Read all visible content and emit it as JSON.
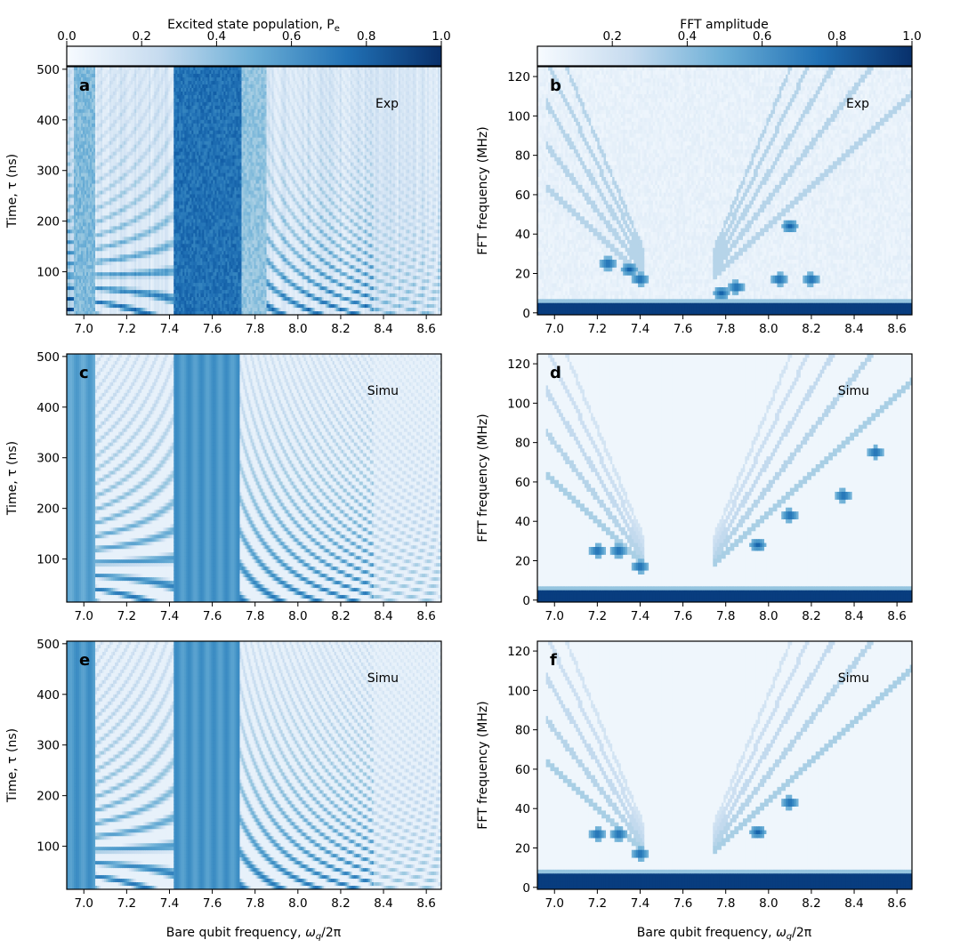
{
  "colorbars": {
    "left": {
      "label": "Excited state population, P",
      "label_sub": "e",
      "ticks": [
        "0.0",
        "0.2",
        "0.4",
        "0.6",
        "0.8",
        "1.0"
      ],
      "range": [
        0,
        1
      ]
    },
    "right": {
      "label": "FFT amplitude",
      "ticks": [
        "0.2",
        "0.4",
        "0.6",
        "0.8",
        "1.0"
      ],
      "tick_values": [
        0.2,
        0.4,
        0.6,
        0.8,
        1.0
      ],
      "range": [
        0,
        1
      ]
    }
  },
  "colors": {
    "low": "#f7fbff",
    "mid": "#6baed6",
    "high": "#08306b",
    "mid_dark": "#2171b5"
  },
  "axes": {
    "x_label_prefix": "Bare qubit frequency, ",
    "x_label_symbol": "ω",
    "x_label_sub": "q",
    "x_label_suffix": "/2π",
    "time_label": "Time, τ (ns)",
    "fft_label": "FFT frequency (MHz)",
    "x_ticks": [
      "7.0",
      "7.2",
      "7.4",
      "7.6",
      "7.8",
      "8.0",
      "8.2",
      "8.4",
      "8.6"
    ],
    "time_ticks": [
      "100",
      "200",
      "300",
      "400",
      "500"
    ],
    "fft_ticks": [
      "0",
      "20",
      "40",
      "60",
      "80",
      "100",
      "120"
    ]
  },
  "chart_data": [
    {
      "type": "heatmap",
      "panel": "a",
      "tag": "Exp",
      "quantity": "Excited state population P_e",
      "xlabel": "",
      "ylabel": "Time, τ (ns)",
      "xlim": [
        6.92,
        8.67
      ],
      "ylim": [
        15,
        505
      ],
      "bands": [
        {
          "x_range": [
            6.95,
            7.05
          ],
          "level": 0.45
        },
        {
          "x_range": [
            7.42,
            7.74
          ],
          "level": 0.75
        },
        {
          "x_range": [
            7.74,
            7.85
          ],
          "level": 0.4
        }
      ],
      "chevron_centers": [
        7.2,
        7.35,
        7.8,
        7.9
      ]
    },
    {
      "type": "heatmap",
      "panel": "b",
      "tag": "Exp",
      "quantity": "FFT amplitude",
      "xlabel": "",
      "ylabel": "FFT frequency (MHz)",
      "xlim": [
        6.92,
        8.67
      ],
      "ylim": [
        -1,
        125
      ],
      "baseline_MHz": [
        0,
        5
      ],
      "features": [
        {
          "x": 7.4,
          "y_MHz": 17
        },
        {
          "x": 7.35,
          "y_MHz": 22
        },
        {
          "x": 7.25,
          "y_MHz": 25
        },
        {
          "x": 7.78,
          "y_MHz": 10
        },
        {
          "x": 7.85,
          "y_MHz": 13
        },
        {
          "x": 8.1,
          "y_MHz": 44
        },
        {
          "x": 8.05,
          "y_MHz": 17
        },
        {
          "x": 8.2,
          "y_MHz": 17
        }
      ]
    },
    {
      "type": "heatmap",
      "panel": "c",
      "tag": "Simu",
      "quantity": "Excited state population P_e",
      "xlabel": "",
      "ylabel": "Time, τ (ns)",
      "xlim": [
        6.92,
        8.67
      ],
      "ylim": [
        15,
        505
      ],
      "bands": [
        {
          "x_range": [
            6.92,
            7.05
          ],
          "level": 0.55
        },
        {
          "x_range": [
            7.42,
            7.73
          ],
          "level": 0.6
        }
      ]
    },
    {
      "type": "heatmap",
      "panel": "d",
      "tag": "Simu",
      "quantity": "FFT amplitude",
      "xlabel": "",
      "ylabel": "FFT frequency (MHz)",
      "xlim": [
        6.92,
        8.67
      ],
      "ylim": [
        -1,
        125
      ],
      "baseline_MHz": [
        0,
        5
      ],
      "features": [
        {
          "x": 7.4,
          "y_MHz": 17
        },
        {
          "x": 7.3,
          "y_MHz": 25
        },
        {
          "x": 7.2,
          "y_MHz": 25
        },
        {
          "x": 7.95,
          "y_MHz": 28
        },
        {
          "x": 8.1,
          "y_MHz": 43
        },
        {
          "x": 8.35,
          "y_MHz": 53
        },
        {
          "x": 8.5,
          "y_MHz": 75
        }
      ]
    },
    {
      "type": "heatmap",
      "panel": "e",
      "tag": "Simu",
      "quantity": "Excited state population P_e",
      "xlabel": "Bare qubit frequency, ω_q/2π",
      "ylabel": "Time, τ (ns)",
      "xlim": [
        6.92,
        8.67
      ],
      "ylim": [
        15,
        505
      ],
      "bands": [
        {
          "x_range": [
            6.92,
            7.05
          ],
          "level": 0.6
        },
        {
          "x_range": [
            7.42,
            7.73
          ],
          "level": 0.6
        }
      ]
    },
    {
      "type": "heatmap",
      "panel": "f",
      "tag": "Simu",
      "quantity": "FFT amplitude",
      "xlabel": "Bare qubit frequency, ω_q/2π",
      "ylabel": "FFT frequency (MHz)",
      "xlim": [
        6.92,
        8.67
      ],
      "ylim": [
        -1,
        125
      ],
      "baseline_MHz": [
        0,
        6
      ],
      "features": [
        {
          "x": 7.4,
          "y_MHz": 17
        },
        {
          "x": 7.3,
          "y_MHz": 27
        },
        {
          "x": 7.2,
          "y_MHz": 27
        },
        {
          "x": 7.95,
          "y_MHz": 28
        },
        {
          "x": 8.1,
          "y_MHz": 43
        }
      ]
    }
  ]
}
